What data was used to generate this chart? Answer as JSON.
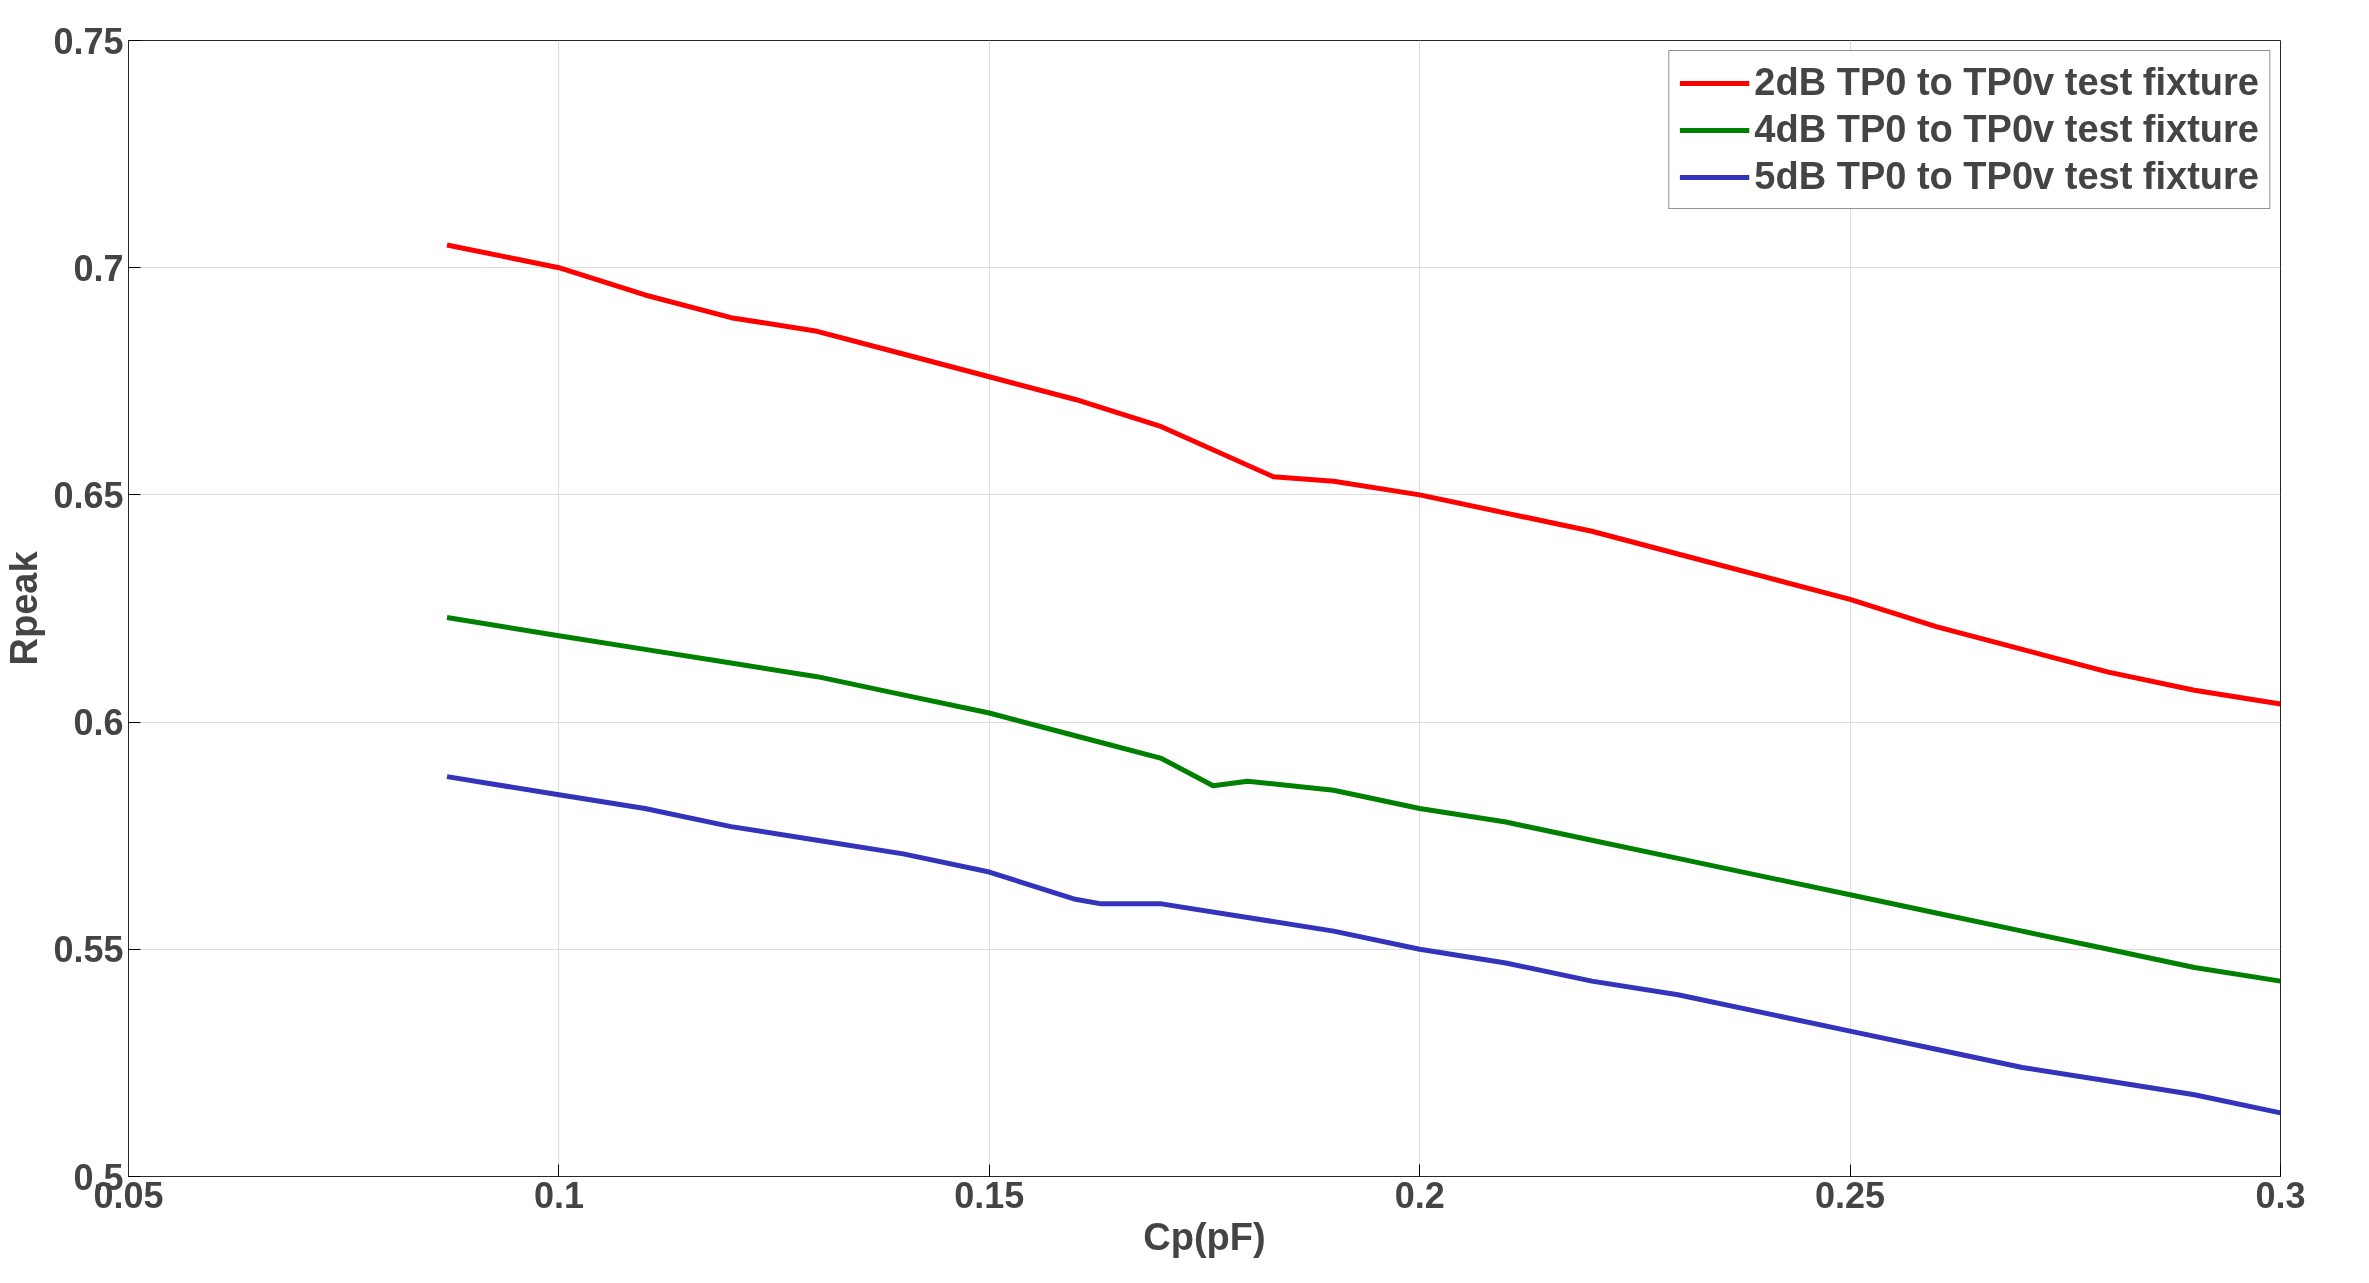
{
  "chart_data": {
    "type": "line",
    "xlabel": "Cp(pF)",
    "ylabel": "Rpeak",
    "xlim": [
      0.05,
      0.3
    ],
    "ylim": [
      0.5,
      0.75
    ],
    "xticks": [
      0.05,
      0.1,
      0.15,
      0.2,
      0.25,
      0.3
    ],
    "yticks": [
      0.5,
      0.55,
      0.6,
      0.65,
      0.7,
      0.75
    ],
    "grid": true,
    "legend": "top right",
    "line_style": "solid",
    "series": [
      {
        "name": "2dB TP0 to TP0v test fixture",
        "color": "#ff0000",
        "x": [
          0.087,
          0.1,
          0.11,
          0.12,
          0.13,
          0.14,
          0.15,
          0.16,
          0.17,
          0.183,
          0.19,
          0.2,
          0.21,
          0.22,
          0.23,
          0.24,
          0.25,
          0.26,
          0.27,
          0.28,
          0.29,
          0.3
        ],
        "values": [
          0.705,
          0.7,
          0.694,
          0.689,
          0.686,
          0.681,
          0.676,
          0.671,
          0.665,
          0.654,
          0.653,
          0.65,
          0.646,
          0.642,
          0.637,
          0.632,
          0.627,
          0.621,
          0.616,
          0.611,
          0.607,
          0.604
        ]
      },
      {
        "name": "4dB TP0 to TP0v test fixture",
        "color": "#008000",
        "x": [
          0.087,
          0.1,
          0.11,
          0.12,
          0.13,
          0.14,
          0.15,
          0.16,
          0.17,
          0.176,
          0.18,
          0.19,
          0.2,
          0.21,
          0.22,
          0.23,
          0.24,
          0.25,
          0.26,
          0.27,
          0.28,
          0.29,
          0.3
        ],
        "values": [
          0.623,
          0.619,
          0.616,
          0.613,
          0.61,
          0.606,
          0.602,
          0.597,
          0.592,
          0.586,
          0.587,
          0.585,
          0.581,
          0.578,
          0.574,
          0.57,
          0.566,
          0.562,
          0.558,
          0.554,
          0.55,
          0.546,
          0.543
        ]
      },
      {
        "name": "5dB TP0 to TP0v test fixture",
        "color": "#3333bb",
        "x": [
          0.087,
          0.1,
          0.11,
          0.12,
          0.13,
          0.14,
          0.15,
          0.16,
          0.163,
          0.17,
          0.18,
          0.19,
          0.2,
          0.21,
          0.22,
          0.23,
          0.24,
          0.25,
          0.26,
          0.27,
          0.28,
          0.29,
          0.3
        ],
        "values": [
          0.588,
          0.584,
          0.581,
          0.577,
          0.574,
          0.571,
          0.567,
          0.561,
          0.56,
          0.56,
          0.557,
          0.554,
          0.55,
          0.547,
          0.543,
          0.54,
          0.536,
          0.532,
          0.528,
          0.524,
          0.521,
          0.518,
          0.514
        ]
      }
    ]
  }
}
